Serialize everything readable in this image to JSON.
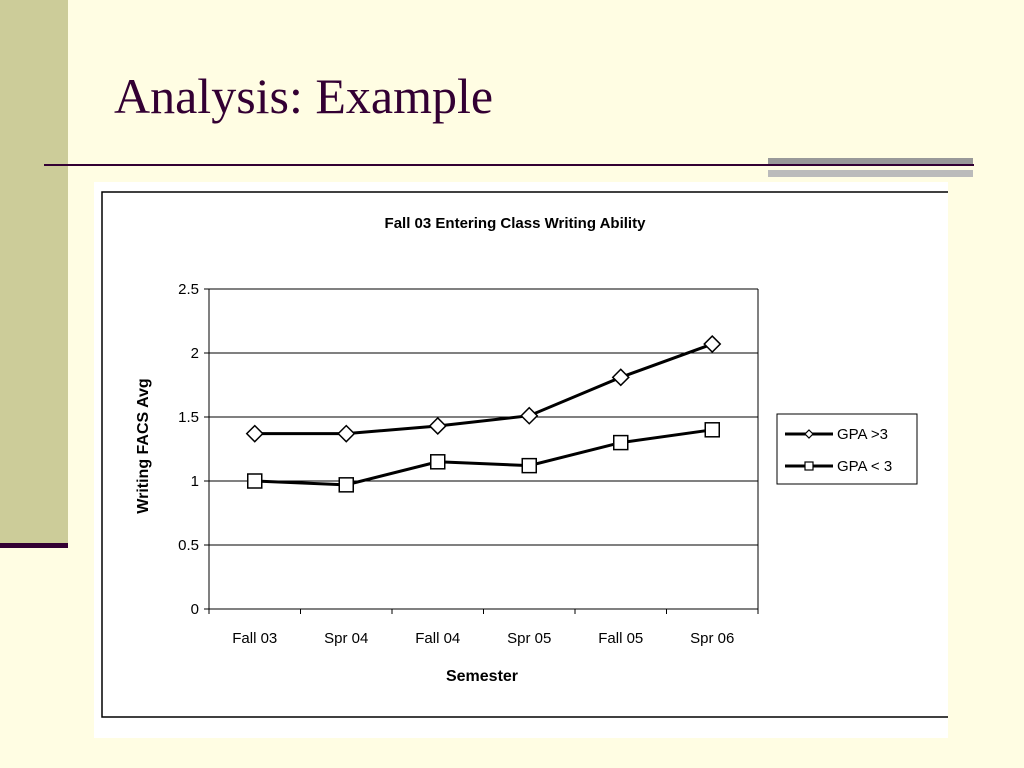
{
  "slide": {
    "title": "Analysis: Example"
  },
  "colors": {
    "background": "#fffde3",
    "band": "#cccc99",
    "accent": "#330033",
    "series": "#000000"
  },
  "chart_data": {
    "type": "line",
    "title": "Fall 03 Entering Class Writing Ability",
    "xlabel": "Semester",
    "ylabel": "Writing FACS Avg",
    "categories": [
      "Fall 03",
      "Spr 04",
      "Fall 04",
      "Spr 05",
      "Fall 05",
      "Spr 06"
    ],
    "ylim": [
      0,
      2.5
    ],
    "yticks": [
      "0",
      "0.5",
      "1",
      "1.5",
      "2",
      "2.5"
    ],
    "grid": true,
    "legend_position": "right",
    "series": [
      {
        "name": "GPA >3",
        "marker": "diamond",
        "values": [
          1.37,
          1.37,
          1.43,
          1.51,
          1.81,
          2.07
        ]
      },
      {
        "name": "GPA < 3",
        "marker": "square",
        "values": [
          1.0,
          0.97,
          1.15,
          1.12,
          1.3,
          1.4
        ]
      }
    ]
  }
}
